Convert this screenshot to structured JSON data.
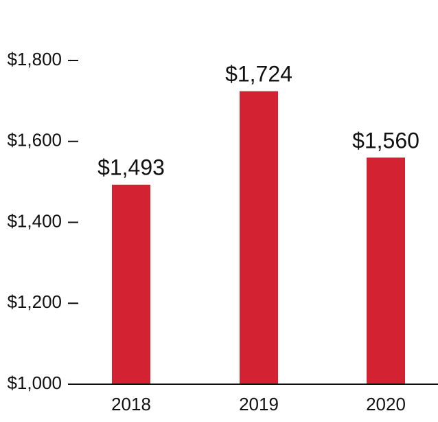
{
  "chart_data": {
    "type": "bar",
    "title": "",
    "xlabel": "",
    "ylabel": "",
    "categories": [
      "2018",
      "2019",
      "2020"
    ],
    "values": [
      1493,
      1724,
      1560
    ],
    "data_labels": [
      "$1,493",
      "$1,724",
      "$1,560"
    ],
    "ylim": [
      1000,
      1800
    ],
    "yticks": [
      1000,
      1200,
      1400,
      1600,
      1800
    ],
    "ytick_labels": [
      "$1,000",
      "$1,200",
      "$1,400",
      "$1,600",
      "$1,800"
    ],
    "grid": false,
    "legend": "none",
    "bar_color": "#D32232",
    "axis_color": "#111111"
  }
}
